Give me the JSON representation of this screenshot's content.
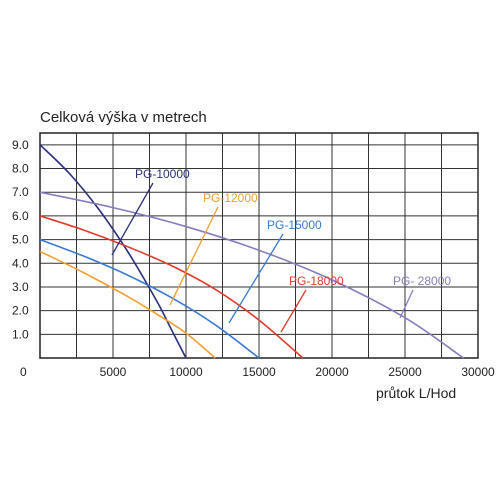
{
  "chart_data": {
    "type": "line",
    "title": "Celková výška v metrech",
    "xlabel": "průtok L/Hod",
    "ylabel": "",
    "xlim": [
      0,
      30000
    ],
    "ylim": [
      0,
      9.5
    ],
    "x_ticks": [
      0,
      5000,
      10000,
      15000,
      20000,
      25000,
      30000
    ],
    "x_tick_labels": [
      "0",
      "5000",
      "10000",
      "15000",
      "20000",
      "25000",
      "30000"
    ],
    "y_ticks": [
      1,
      2,
      3,
      4,
      5,
      6,
      7,
      8,
      9
    ],
    "y_tick_labels": [
      "1.0",
      "2.0",
      "3.0",
      "4.0",
      "5.0",
      "6.0",
      "7.0",
      "8.0",
      "9.0"
    ],
    "grid": true,
    "series": [
      {
        "name": "PG-10000",
        "color": "#2a2f7a",
        "x": [
          0,
          2000,
          4000,
          6000,
          8000,
          9000,
          10000
        ],
        "y": [
          9.0,
          7.8,
          6.3,
          4.5,
          2.4,
          1.2,
          0.0
        ]
      },
      {
        "name": "PG-12000",
        "color": "#f0a030",
        "x": [
          0,
          3000,
          6000,
          8000,
          10000,
          12000
        ],
        "y": [
          4.5,
          3.6,
          2.6,
          1.85,
          1.05,
          0.0
        ]
      },
      {
        "name": "PG-15000",
        "color": "#3a7bd0",
        "x": [
          0,
          3000,
          6000,
          9000,
          12000,
          15000
        ],
        "y": [
          5.0,
          4.3,
          3.5,
          2.55,
          1.4,
          0.0
        ]
      },
      {
        "name": "PG-18000",
        "color": "#e03a2a",
        "x": [
          0,
          3000,
          6000,
          9000,
          12000,
          15000,
          18000
        ],
        "y": [
          6.0,
          5.4,
          4.7,
          3.9,
          2.9,
          1.6,
          0.0
        ]
      },
      {
        "name": "PG- 28000",
        "color": "#8a7cc0",
        "x": [
          0,
          5000,
          10000,
          15000,
          20000,
          25000,
          29000
        ],
        "y": [
          7.0,
          6.35,
          5.55,
          4.55,
          3.3,
          1.7,
          0.0
        ]
      }
    ]
  }
}
